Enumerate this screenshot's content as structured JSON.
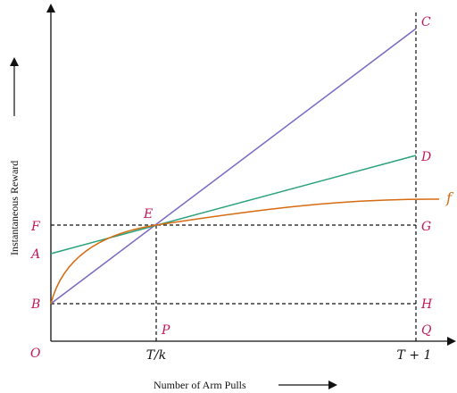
{
  "axes": {
    "x_label": "Number of Arm Pulls",
    "y_label": "Instantaneous Reward"
  },
  "points": {
    "O": "O",
    "A": "A",
    "B": "B",
    "C": "C",
    "D": "D",
    "E": "E",
    "F": "F",
    "G": "G",
    "H": "H",
    "P": "P",
    "Q": "Q"
  },
  "ticks": {
    "t_over_k": "T/k",
    "t_plus_1": "T + 1"
  },
  "curve_label": "f",
  "colors": {
    "purple_line": "#7b68c1",
    "green_line": "#2aa17a",
    "orange_curve": "#d56a10",
    "point_labels": "#c2185b",
    "axes": "#111111"
  }
}
